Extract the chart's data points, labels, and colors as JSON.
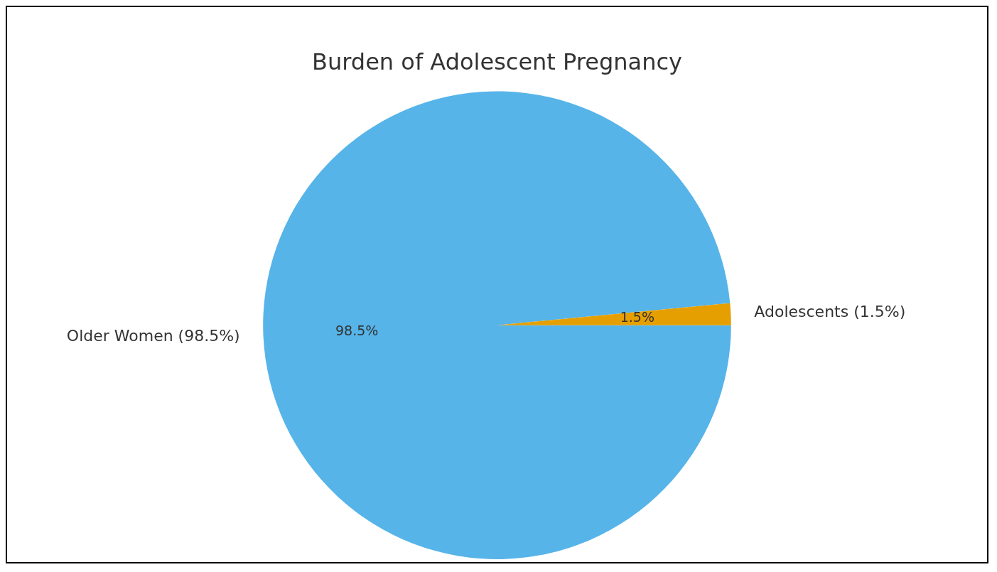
{
  "chart_data": {
    "type": "pie",
    "title": "Burden of Adolescent Pregnancy",
    "categories": [
      "Older Women (98.5%)",
      "Adolescents (1.5%)"
    ],
    "values": [
      98.5,
      1.5
    ],
    "colors": [
      "#56b4e9",
      "#e69f00"
    ],
    "value_labels": [
      "98.5%",
      "1.5%"
    ],
    "legend": false
  }
}
